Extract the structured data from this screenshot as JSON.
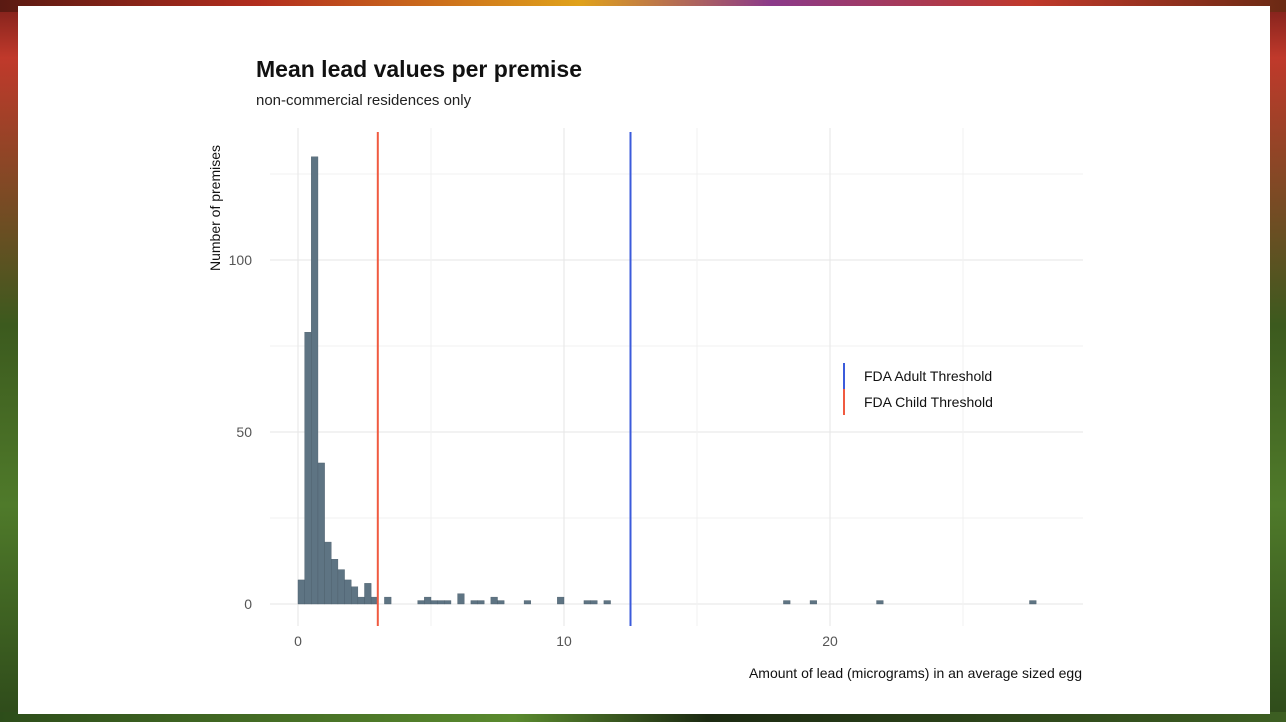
{
  "chart_data": {
    "type": "bar",
    "title": "Mean lead values per premise",
    "subtitle": "non-commercial residences only",
    "xlabel": "Amount of lead (micrograms) in an average sized egg",
    "ylabel": "Number of premises",
    "xlim": [
      -1.0,
      29.4
    ],
    "ylim": [
      0,
      140
    ],
    "x_ticks": [
      0,
      10,
      20
    ],
    "y_ticks": [
      0,
      50,
      100
    ],
    "grid": true,
    "bin_width": 0.25,
    "bar_color": "#5e7483",
    "bins": [
      {
        "x": 0.125,
        "count": 7
      },
      {
        "x": 0.375,
        "count": 79
      },
      {
        "x": 0.625,
        "count": 130
      },
      {
        "x": 0.875,
        "count": 41
      },
      {
        "x": 1.125,
        "count": 18
      },
      {
        "x": 1.375,
        "count": 13
      },
      {
        "x": 1.625,
        "count": 10
      },
      {
        "x": 1.875,
        "count": 7
      },
      {
        "x": 2.125,
        "count": 5
      },
      {
        "x": 2.375,
        "count": 2
      },
      {
        "x": 2.625,
        "count": 6
      },
      {
        "x": 2.875,
        "count": 2
      },
      {
        "x": 3.375,
        "count": 2
      },
      {
        "x": 4.625,
        "count": 1
      },
      {
        "x": 4.875,
        "count": 2
      },
      {
        "x": 5.125,
        "count": 1
      },
      {
        "x": 5.375,
        "count": 1
      },
      {
        "x": 5.625,
        "count": 1
      },
      {
        "x": 6.125,
        "count": 3
      },
      {
        "x": 6.625,
        "count": 1
      },
      {
        "x": 6.875,
        "count": 1
      },
      {
        "x": 7.375,
        "count": 2
      },
      {
        "x": 7.625,
        "count": 1
      },
      {
        "x": 8.625,
        "count": 1
      },
      {
        "x": 9.875,
        "count": 2
      },
      {
        "x": 10.875,
        "count": 1
      },
      {
        "x": 11.125,
        "count": 1
      },
      {
        "x": 11.625,
        "count": 1
      },
      {
        "x": 18.375,
        "count": 1
      },
      {
        "x": 19.375,
        "count": 1
      },
      {
        "x": 21.875,
        "count": 1
      },
      {
        "x": 27.625,
        "count": 1
      }
    ],
    "reference_lines": [
      {
        "name": "FDA Adult Threshold",
        "x": 12.5,
        "color": "#3b5bdb"
      },
      {
        "name": "FDA Child Threshold",
        "x": 3.0,
        "color": "#f05a40"
      }
    ],
    "legend": [
      {
        "name": "FDA Adult Threshold",
        "color": "#3b5bdb"
      },
      {
        "name": "FDA Child Threshold",
        "color": "#f05a40"
      }
    ],
    "legend_position": "right"
  }
}
